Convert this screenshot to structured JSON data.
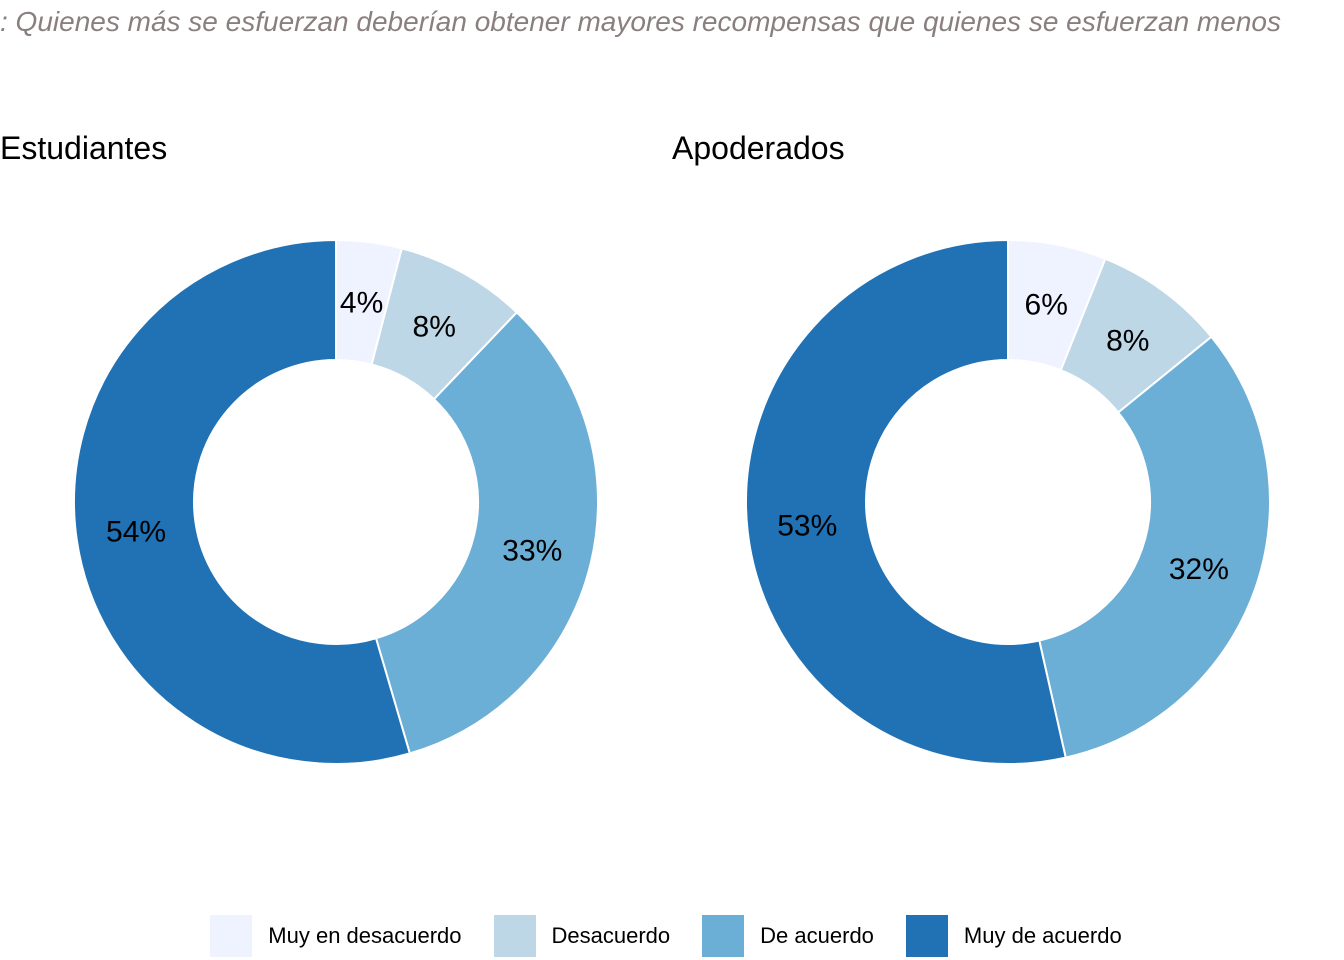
{
  "chart_data": {
    "type": "pie",
    "subtype": "donut",
    "title": ": Quienes más se esfuerzan deberían obtener mayores recompensas que quienes se esfuerzan menos",
    "categories": [
      "Muy en desacuerdo",
      "Desacuerdo",
      "De acuerdo",
      "Muy de acuerdo"
    ],
    "colors": [
      "#eff3ff",
      "#bdd7e7",
      "#6baed6",
      "#2171b5"
    ],
    "legend_position": "bottom",
    "panels": [
      {
        "title": "Estudiantes",
        "values": [
          4,
          8,
          33,
          54
        ],
        "labels": [
          "4%",
          "8%",
          "33%",
          "54%"
        ]
      },
      {
        "title": "Apoderados",
        "values": [
          6,
          8,
          32,
          53
        ],
        "labels": [
          "6%",
          "8%",
          "32%",
          "53%"
        ]
      }
    ]
  }
}
